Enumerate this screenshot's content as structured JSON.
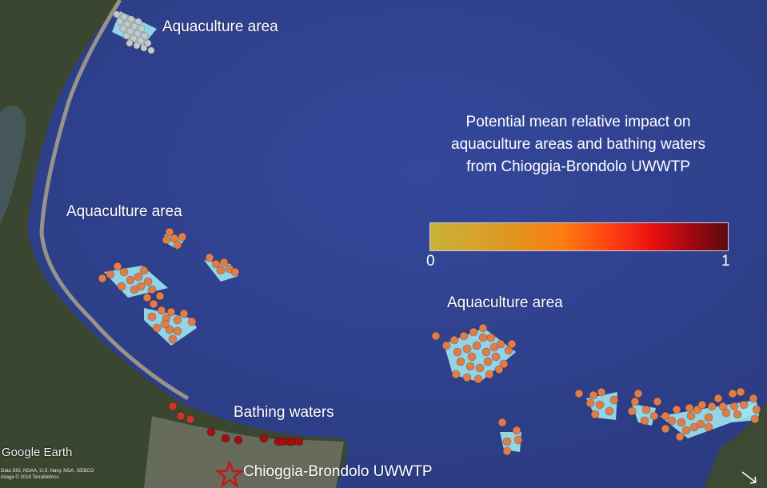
{
  "labels": {
    "aqua_top": "Aquaculture area",
    "aqua_left": "Aquaculture area",
    "aqua_mid": "Aquaculture area",
    "bathing": "Bathing waters",
    "plant": "Chioggia-Brondolo UWWTP"
  },
  "legend": {
    "title": "Potential mean relative impact on aquaculture areas and bathing waters from Chioggia-Brondolo UWWTP",
    "min": "0",
    "max": "1",
    "colors": [
      "#c9b23a",
      "#e0961f",
      "#ff7a10",
      "#ff3b12",
      "#e81010",
      "#9e0810",
      "#5c0a12"
    ]
  },
  "attribution": {
    "logo": "Google Earth",
    "line1": "Data SIO, NOAA, U.S. Navy, NGA, GEBCO",
    "line2": "Image © 2018 TerraMetrics"
  },
  "colors": {
    "sea": "#2f3f8c",
    "land": "#3d4a2c",
    "aquaculture_area": "#9fe6f0",
    "low_impact": "#c8c8c8",
    "medium_impact": "#e07b4a",
    "high_impact": "#a01010"
  }
}
